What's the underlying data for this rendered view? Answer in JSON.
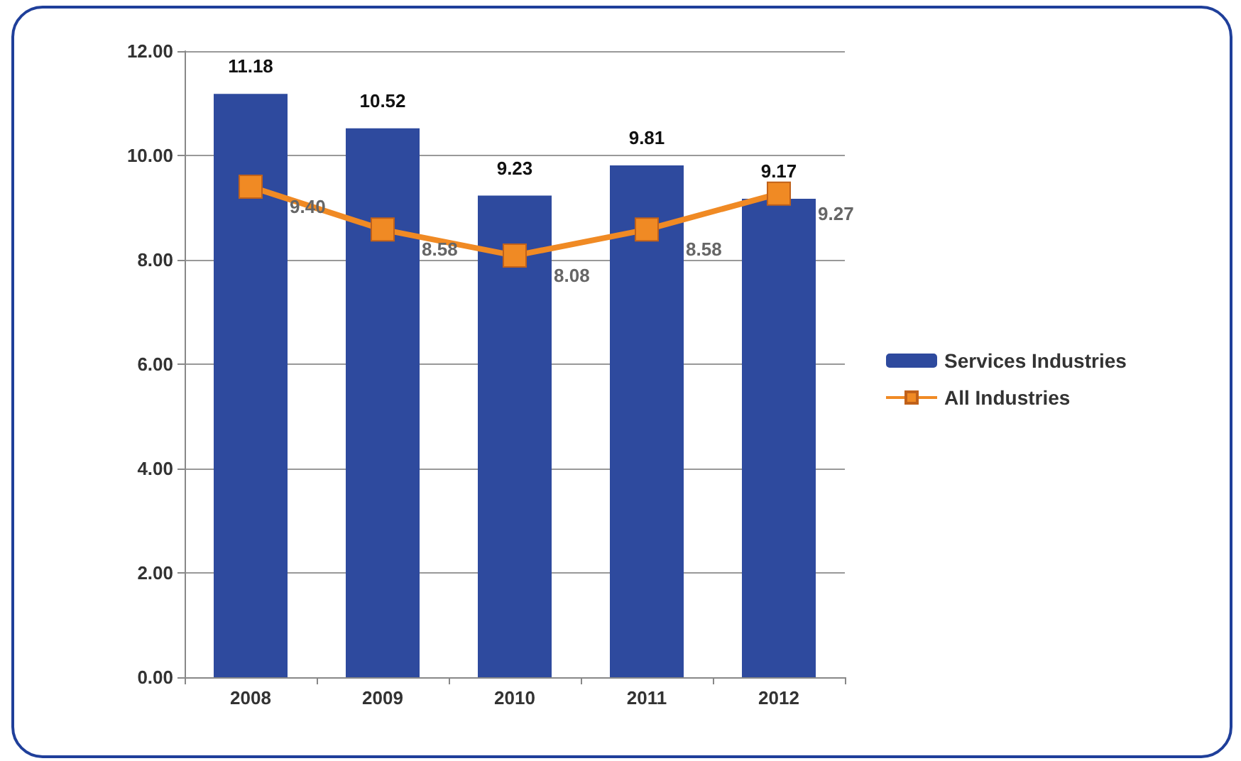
{
  "chart_data": {
    "type": "bar",
    "categories": [
      "2008",
      "2009",
      "2010",
      "2011",
      "2012"
    ],
    "series": [
      {
        "name": "Services Industries",
        "color": "#2e4a9e",
        "values": [
          11.18,
          10.52,
          9.23,
          9.81,
          9.17
        ],
        "value_labels": [
          "11.18",
          "10.52",
          "9.23",
          "9.81",
          "9.17"
        ]
      },
      {
        "name": "All Industries",
        "type": "line",
        "color": "#f08a24",
        "marker": "square",
        "values": [
          9.4,
          8.58,
          8.08,
          8.58,
          9.27
        ],
        "value_labels": [
          "9.40",
          "8.58",
          "8.08",
          "8.58",
          "9.27"
        ]
      }
    ],
    "ylim": [
      0,
      12
    ],
    "yticks": [
      {
        "value": 0,
        "label": "0.00"
      },
      {
        "value": 2,
        "label": "2.00"
      },
      {
        "value": 4,
        "label": "4.00"
      },
      {
        "value": 6,
        "label": "6.00"
      },
      {
        "value": 8,
        "label": "8.00"
      },
      {
        "value": 10,
        "label": "10.00"
      },
      {
        "value": 12,
        "label": "12.00"
      }
    ],
    "grid": "y",
    "legend": "right"
  }
}
